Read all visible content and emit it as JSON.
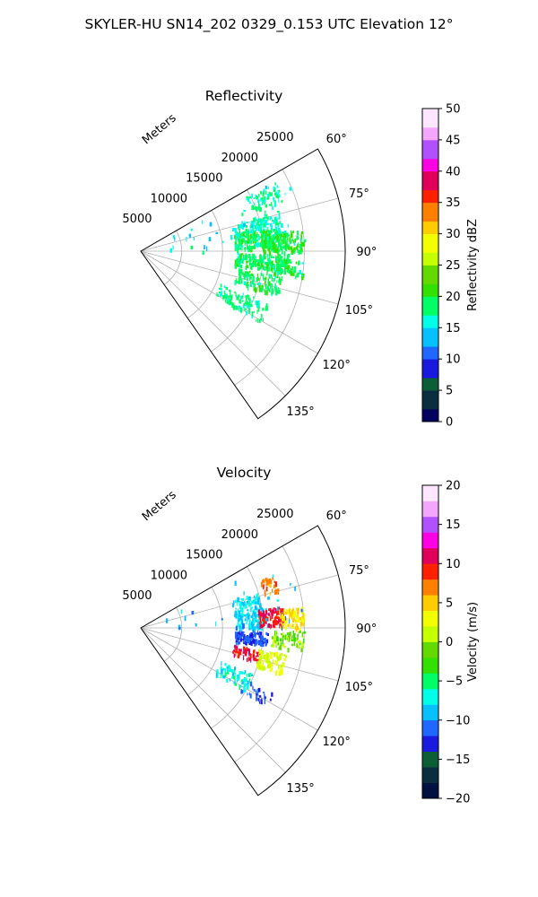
{
  "figure": {
    "suptitle": "SKYLER-HU  SN14_202  0329_0.153 UTC Elevation 12°"
  },
  "chart_data": [
    {
      "type": "scatter",
      "subtype": "polar-sector-ppi",
      "title": "Reflectivity",
      "radial_axis_label": "Meters",
      "radial_ticks": [
        "5000",
        "10000",
        "15000",
        "20000",
        "25000"
      ],
      "radial_tick_values": [
        5000,
        10000,
        15000,
        20000,
        25000
      ],
      "rlim": [
        0,
        25000
      ],
      "angle_ticks": [
        "60°",
        "75°",
        "90°",
        "105°",
        "120°",
        "135°"
      ],
      "angle_tick_values": [
        60,
        75,
        90,
        105,
        120,
        135
      ],
      "thetalim": [
        60,
        145
      ],
      "grid": true,
      "colorbar": {
        "label": "Reflectivity dBZ",
        "ticks": [
          "0",
          "5",
          "10",
          "15",
          "20",
          "25",
          "30",
          "35",
          "40",
          "45",
          "50"
        ],
        "min": 0,
        "max": 50,
        "steps": 50,
        "colormap": [
          "#000060",
          "#0a2e40",
          "#0b5e36",
          "#1a1adf",
          "#1f67ff",
          "#07c0ff",
          "#00ffe9",
          "#00ff66",
          "#33e000",
          "#63d900",
          "#c6ff00",
          "#f1ff00",
          "#ffcc00",
          "#ff8000",
          "#ff2000",
          "#e0005a",
          "#ff00e4",
          "#b050ff",
          "#f4a6ff",
          "#fde6ff"
        ]
      },
      "clusters": [
        {
          "az": [
            62,
            70
          ],
          "range": [
            14500,
            18500
          ],
          "value": 18,
          "count": 70
        },
        {
          "az": [
            73,
            80
          ],
          "range": [
            11500,
            17500
          ],
          "value": 17,
          "count": 110
        },
        {
          "az": [
            80,
            88
          ],
          "range": [
            11500,
            18000
          ],
          "value": 19,
          "count": 210
        },
        {
          "az": [
            82,
            90
          ],
          "range": [
            15000,
            20000
          ],
          "value": 20,
          "count": 130
        },
        {
          "az": [
            91,
            98
          ],
          "range": [
            11500,
            18000
          ],
          "value": 19,
          "count": 180
        },
        {
          "az": [
            93,
            99
          ],
          "range": [
            15500,
            20000
          ],
          "value": 19,
          "count": 80
        },
        {
          "az": [
            100,
            108
          ],
          "range": [
            12000,
            17500
          ],
          "value": 19,
          "count": 130
        },
        {
          "az": [
            112,
            121
          ],
          "range": [
            10500,
            17000
          ],
          "value": 18,
          "count": 110
        },
        {
          "az": [
            62,
            90
          ],
          "range": [
            3000,
            20000
          ],
          "value": 16,
          "count": 40
        }
      ]
    },
    {
      "type": "scatter",
      "subtype": "polar-sector-ppi",
      "title": "Velocity",
      "radial_axis_label": "Meters",
      "radial_ticks": [
        "5000",
        "10000",
        "15000",
        "20000",
        "25000"
      ],
      "radial_tick_values": [
        5000,
        10000,
        15000,
        20000,
        25000
      ],
      "rlim": [
        0,
        25000
      ],
      "angle_ticks": [
        "60°",
        "75°",
        "90°",
        "105°",
        "120°",
        "135°"
      ],
      "angle_tick_values": [
        60,
        75,
        90,
        105,
        120,
        135
      ],
      "thetalim": [
        60,
        145
      ],
      "grid": true,
      "colorbar": {
        "label": "Velocity (m/s)",
        "ticks": [
          "−20",
          "−15",
          "−10",
          "−5",
          "0",
          "5",
          "10",
          "15",
          "20"
        ],
        "min": -20,
        "max": 20,
        "steps": 40,
        "colormap": [
          "#001040",
          "#0a2e40",
          "#0b5e36",
          "#1a1adf",
          "#1f67ff",
          "#07c0ff",
          "#00ffe9",
          "#00ff66",
          "#33e000",
          "#63d900",
          "#c6ff00",
          "#f1ff00",
          "#ffcc00",
          "#ff8000",
          "#ff2000",
          "#e0005a",
          "#ff00e4",
          "#b050ff",
          "#f4a6ff",
          "#fde6ff"
        ]
      },
      "clusters": [
        {
          "az": [
            73,
            80
          ],
          "range": [
            11500,
            15000
          ],
          "value": -8,
          "count": 70
        },
        {
          "az": [
            80,
            90
          ],
          "range": [
            11500,
            15500
          ],
          "value": -8,
          "count": 110
        },
        {
          "az": [
            81,
            89
          ],
          "range": [
            14500,
            17500
          ],
          "value": 10,
          "count": 110
        },
        {
          "az": [
            82,
            90
          ],
          "range": [
            17000,
            20000
          ],
          "value": 4,
          "count": 90
        },
        {
          "az": [
            68,
            75
          ],
          "range": [
            15500,
            17500
          ],
          "value": 7,
          "count": 30
        },
        {
          "az": [
            91,
            98
          ],
          "range": [
            11500,
            15500
          ],
          "value": -12,
          "count": 130
        },
        {
          "az": [
            91,
            98
          ],
          "range": [
            16000,
            20000
          ],
          "value": -1,
          "count": 80
        },
        {
          "az": [
            100,
            106
          ],
          "range": [
            11500,
            15000
          ],
          "value": 10,
          "count": 60
        },
        {
          "az": [
            100,
            108
          ],
          "range": [
            14500,
            18000
          ],
          "value": 2,
          "count": 90
        },
        {
          "az": [
            112,
            121
          ],
          "range": [
            10500,
            15000
          ],
          "value": -7,
          "count": 70
        },
        {
          "az": [
            116,
            122
          ],
          "range": [
            14000,
            18000
          ],
          "value": -12,
          "count": 30
        },
        {
          "az": [
            62,
            90
          ],
          "range": [
            3000,
            20000
          ],
          "value": -9,
          "count": 30
        }
      ]
    }
  ]
}
